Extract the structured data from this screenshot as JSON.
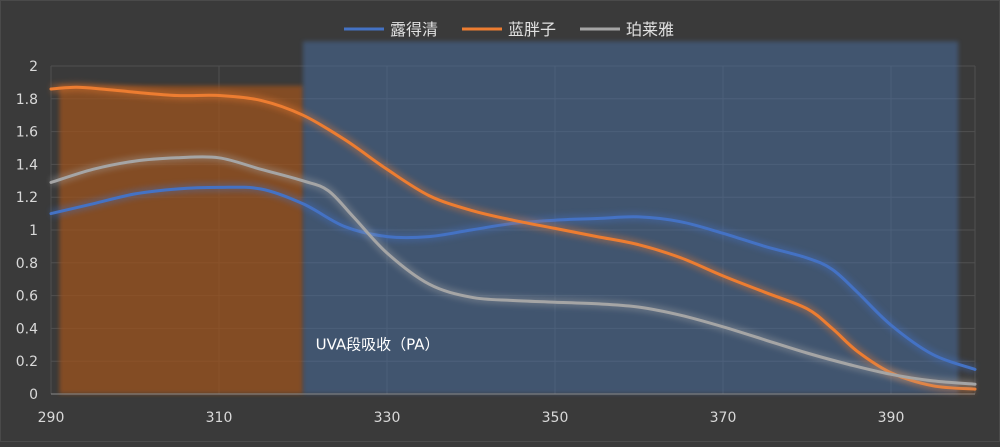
{
  "chart_data": {
    "type": "line",
    "title": "",
    "xlabel": "",
    "ylabel": "",
    "xlim": [
      290,
      400
    ],
    "ylim": [
      0,
      2
    ],
    "x_ticks": [
      290,
      310,
      330,
      350,
      370,
      390
    ],
    "y_ticks": [
      0,
      0.2,
      0.4,
      0.6,
      0.8,
      1,
      1.2,
      1.4,
      1.6,
      1.8,
      2
    ],
    "x_tick_labels": [
      "290",
      "310",
      "330",
      "350",
      "370",
      "390"
    ],
    "y_tick_labels": [
      "0",
      "0.2",
      "0.4",
      "0.6",
      "0.8",
      "1",
      "1.2",
      "1.4",
      "1.6",
      "1.8",
      "2"
    ],
    "grid": "vertical and horizontal",
    "legend_position": "top-center",
    "regions": [
      {
        "name": "uvb-band",
        "x_from": 291,
        "x_to": 320,
        "y_to": 1.88,
        "color": "#a0521e"
      },
      {
        "name": "uva-band",
        "x_from": 320,
        "x_to": 398,
        "y_to": 2.15,
        "color": "#4a6fa5",
        "label": "UVA段吸收（PA）"
      }
    ],
    "series": [
      {
        "name": "露得清",
        "color": "#4472c4",
        "x": [
          290,
          295,
          300,
          305,
          310,
          315,
          320,
          325,
          330,
          335,
          340,
          345,
          350,
          355,
          360,
          365,
          370,
          375,
          380,
          383,
          386,
          390,
          395,
          400
        ],
        "y": [
          1.1,
          1.16,
          1.22,
          1.25,
          1.26,
          1.25,
          1.16,
          1.02,
          0.96,
          0.96,
          1.0,
          1.04,
          1.06,
          1.07,
          1.08,
          1.05,
          0.98,
          0.9,
          0.83,
          0.76,
          0.62,
          0.42,
          0.24,
          0.15
        ]
      },
      {
        "name": "蓝胖子",
        "color": "#ed7d31",
        "x": [
          290,
          293,
          296,
          300,
          305,
          310,
          315,
          320,
          325,
          330,
          335,
          340,
          345,
          350,
          355,
          360,
          365,
          370,
          375,
          380,
          383,
          386,
          390,
          395,
          400
        ],
        "y": [
          1.86,
          1.87,
          1.86,
          1.84,
          1.82,
          1.82,
          1.79,
          1.7,
          1.55,
          1.37,
          1.21,
          1.12,
          1.06,
          1.01,
          0.96,
          0.91,
          0.83,
          0.72,
          0.62,
          0.52,
          0.4,
          0.26,
          0.13,
          0.05,
          0.03
        ]
      },
      {
        "name": "珀莱雅",
        "color": "#a5a5a5",
        "x": [
          290,
          295,
          300,
          305,
          310,
          315,
          320,
          323,
          326,
          330,
          335,
          340,
          345,
          350,
          355,
          360,
          365,
          370,
          375,
          380,
          385,
          390,
          395,
          400
        ],
        "y": [
          1.29,
          1.37,
          1.42,
          1.44,
          1.44,
          1.37,
          1.3,
          1.24,
          1.08,
          0.86,
          0.67,
          0.59,
          0.57,
          0.56,
          0.55,
          0.53,
          0.48,
          0.41,
          0.33,
          0.25,
          0.18,
          0.12,
          0.08,
          0.06
        ]
      }
    ]
  }
}
